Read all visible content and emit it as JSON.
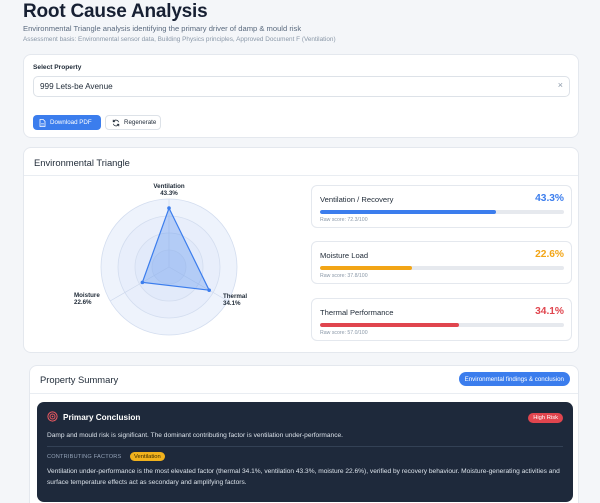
{
  "header": {
    "title": "Root Cause Analysis",
    "subtitle": "Environmental Triangle analysis identifying the primary driver of damp & mould risk",
    "basis": "Assessment basis: Environmental sensor data, Building Physics principles, Approved Document F (Ventilation)"
  },
  "select_property": {
    "label": "Select Property",
    "value": "999 Lets-be Avenue",
    "clear_icon": "×",
    "download_label": "Download PDF",
    "regenerate_label": "Regenerate"
  },
  "triangle": {
    "title": "Environmental Triangle",
    "radar_labels": {
      "ventilation_name": "Ventilation",
      "ventilation_value": "43.3%",
      "moisture_name": "Moisture",
      "moisture_value": "22.6%",
      "thermal_name": "Thermal",
      "thermal_value": "34.1%"
    },
    "metrics": [
      {
        "name": "Ventilation / Recovery",
        "pct_label": "43.3%",
        "raw": "Raw score: 72.3/100",
        "raw_value": 72.3,
        "color": "#3b7ded"
      },
      {
        "name": "Moisture Load",
        "pct_label": "22.6%",
        "raw": "Raw score: 37.8/100",
        "raw_value": 37.8,
        "color": "#f2a516"
      },
      {
        "name": "Thermal Performance",
        "pct_label": "34.1%",
        "raw": "Raw score: 57.0/100",
        "raw_value": 57.0,
        "color": "#e0454e"
      }
    ]
  },
  "chart_data": {
    "type": "radar",
    "categories": [
      "Ventilation",
      "Thermal",
      "Moisture"
    ],
    "values": [
      43.3,
      34.1,
      22.6
    ],
    "unit": "%",
    "rmax": 50
  },
  "summary": {
    "title": "Property Summary",
    "button_label": "Environmental findings & conclusion",
    "conclusion_title": "Primary Conclusion",
    "risk_badge": "High Risk",
    "conclusion_text": "Damp and mould risk is significant. The dominant contributing factor is ventilation under-performance.",
    "factors_label": "CONTRIBUTING FACTORS",
    "factor_chip": "Ventilation",
    "factors_text": "Ventilation under-performance is the most elevated factor (thermal 34.1%, ventilation 43.3%, moisture 22.6%), verified by recovery behaviour. Moisture-generating activities and surface temperature effects act as secondary and amplifying factors."
  },
  "colors": {
    "accent": "#3b7ded",
    "ventilation": "#3b7ded",
    "moisture": "#f2a516",
    "thermal": "#e0454e",
    "dark_panel": "#1e293b"
  }
}
